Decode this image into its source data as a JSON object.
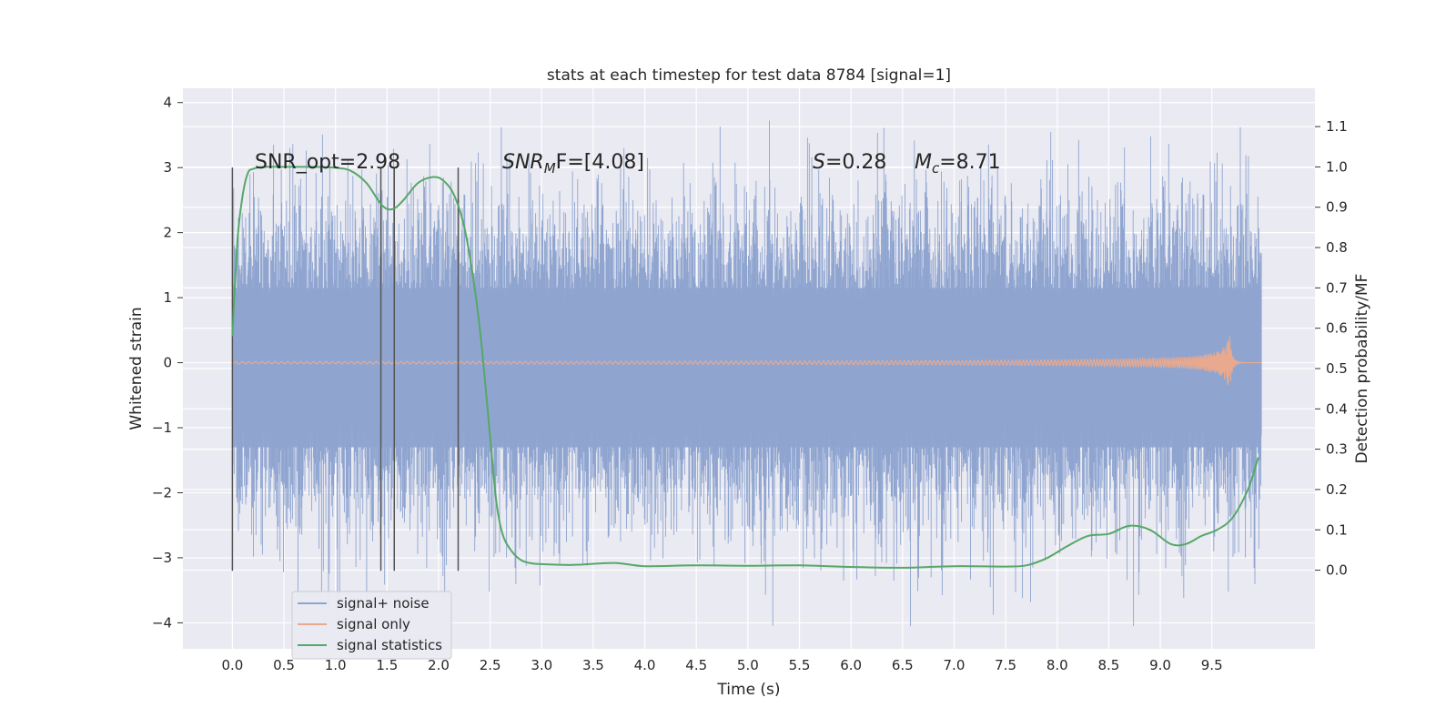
{
  "chart_data": {
    "type": "line",
    "title": "stats at each timestep for test data 8784 [signal=1]",
    "xlabel": "Time (s)",
    "ylabel": "Whitened strain",
    "ylabel_right": "Detection probability/MF",
    "xlim": [
      -0.48,
      10.5
    ],
    "ylim": [
      -4.4,
      4.22
    ],
    "ylim_right": [
      -0.195,
      1.195
    ],
    "x_ticks": [
      "0.0",
      "0.5",
      "1.0",
      "1.5",
      "2.0",
      "2.5",
      "3.0",
      "3.5",
      "4.0",
      "4.5",
      "5.0",
      "5.5",
      "6.0",
      "6.5",
      "7.0",
      "7.5",
      "8.0",
      "8.5",
      "9.0",
      "9.5"
    ],
    "y_ticks": [
      "−4",
      "−3",
      "−2",
      "−1",
      "0",
      "1",
      "2",
      "3",
      "4"
    ],
    "y_ticks_right": [
      "0.0",
      "0.1",
      "0.2",
      "0.3",
      "0.4",
      "0.5",
      "0.6",
      "0.7",
      "0.8",
      "0.9",
      "1.0",
      "1.1"
    ],
    "grid": true,
    "legend_position": "lower-left",
    "annotations": {
      "snr_opt": "SNR_opt=2.98",
      "snr_mf_italic": "SNR",
      "snr_mf_sub": "M",
      "snr_mf_rest": "F=[4.08]",
      "s_italic": "S",
      "s_rest": "=0.28",
      "mc_italic": "M",
      "mc_sub": "c",
      "mc_rest": "=8.71"
    },
    "vertical_lines_x": [
      0.0,
      1.44,
      1.57,
      2.19
    ],
    "vertical_lines_yrange": [
      -3.2,
      3.0
    ],
    "series": [
      {
        "name": "signal+ noise",
        "color": "#8fa5d0",
        "noise_band": {
          "x_start": 0.0,
          "x_end": 9.98,
          "core_sigma": 1.0,
          "spike_max": 3.9,
          "spike_min": -4.05
        }
      },
      {
        "name": "signal only",
        "color": "#e8a98f",
        "chirp": {
          "x_start": 0.0,
          "x_merger": 9.67,
          "x_end": 9.98,
          "peak_amplitude": 0.5
        }
      },
      {
        "name": "signal statistics",
        "color": "#55a868",
        "axis": "right",
        "x": [
          0.0,
          0.05,
          0.1,
          0.15,
          0.2,
          0.3,
          0.5,
          0.8,
          1.0,
          1.15,
          1.3,
          1.45,
          1.55,
          1.65,
          1.8,
          1.95,
          2.05,
          2.15,
          2.25,
          2.35,
          2.42,
          2.5,
          2.56,
          2.62,
          2.7,
          2.8,
          2.9,
          3.0,
          3.3,
          3.7,
          4.0,
          4.5,
          5.0,
          5.5,
          6.0,
          6.5,
          7.0,
          7.5,
          7.7,
          7.9,
          8.1,
          8.3,
          8.5,
          8.7,
          8.9,
          9.1,
          9.25,
          9.4,
          9.55,
          9.7,
          9.85,
          9.95
        ],
        "y": [
          0.58,
          0.82,
          0.93,
          0.985,
          0.995,
          1.0,
          1.0,
          1.0,
          0.998,
          0.99,
          0.96,
          0.905,
          0.895,
          0.915,
          0.96,
          0.975,
          0.965,
          0.93,
          0.85,
          0.7,
          0.55,
          0.33,
          0.17,
          0.09,
          0.05,
          0.025,
          0.017,
          0.015,
          0.013,
          0.018,
          0.01,
          0.012,
          0.011,
          0.012,
          0.008,
          0.006,
          0.01,
          0.009,
          0.012,
          0.03,
          0.06,
          0.085,
          0.09,
          0.11,
          0.1,
          0.065,
          0.065,
          0.085,
          0.1,
          0.13,
          0.2,
          0.28
        ]
      }
    ]
  }
}
